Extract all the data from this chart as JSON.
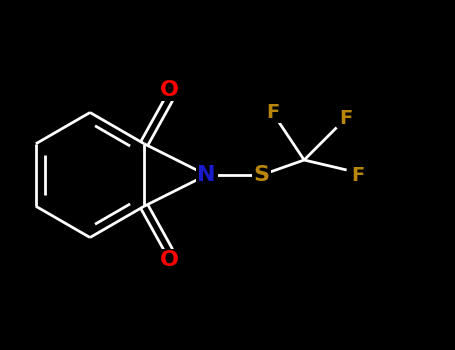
{
  "background_color": "#000000",
  "bond_color": "#ffffff",
  "N_color": "#1a1acd",
  "O_color": "#ff0000",
  "S_color": "#b8860b",
  "F_color": "#b8860b",
  "figsize": [
    4.55,
    3.5
  ],
  "dpi": 100,
  "xlim": [
    0,
    9.1
  ],
  "ylim": [
    0,
    7.0
  ]
}
